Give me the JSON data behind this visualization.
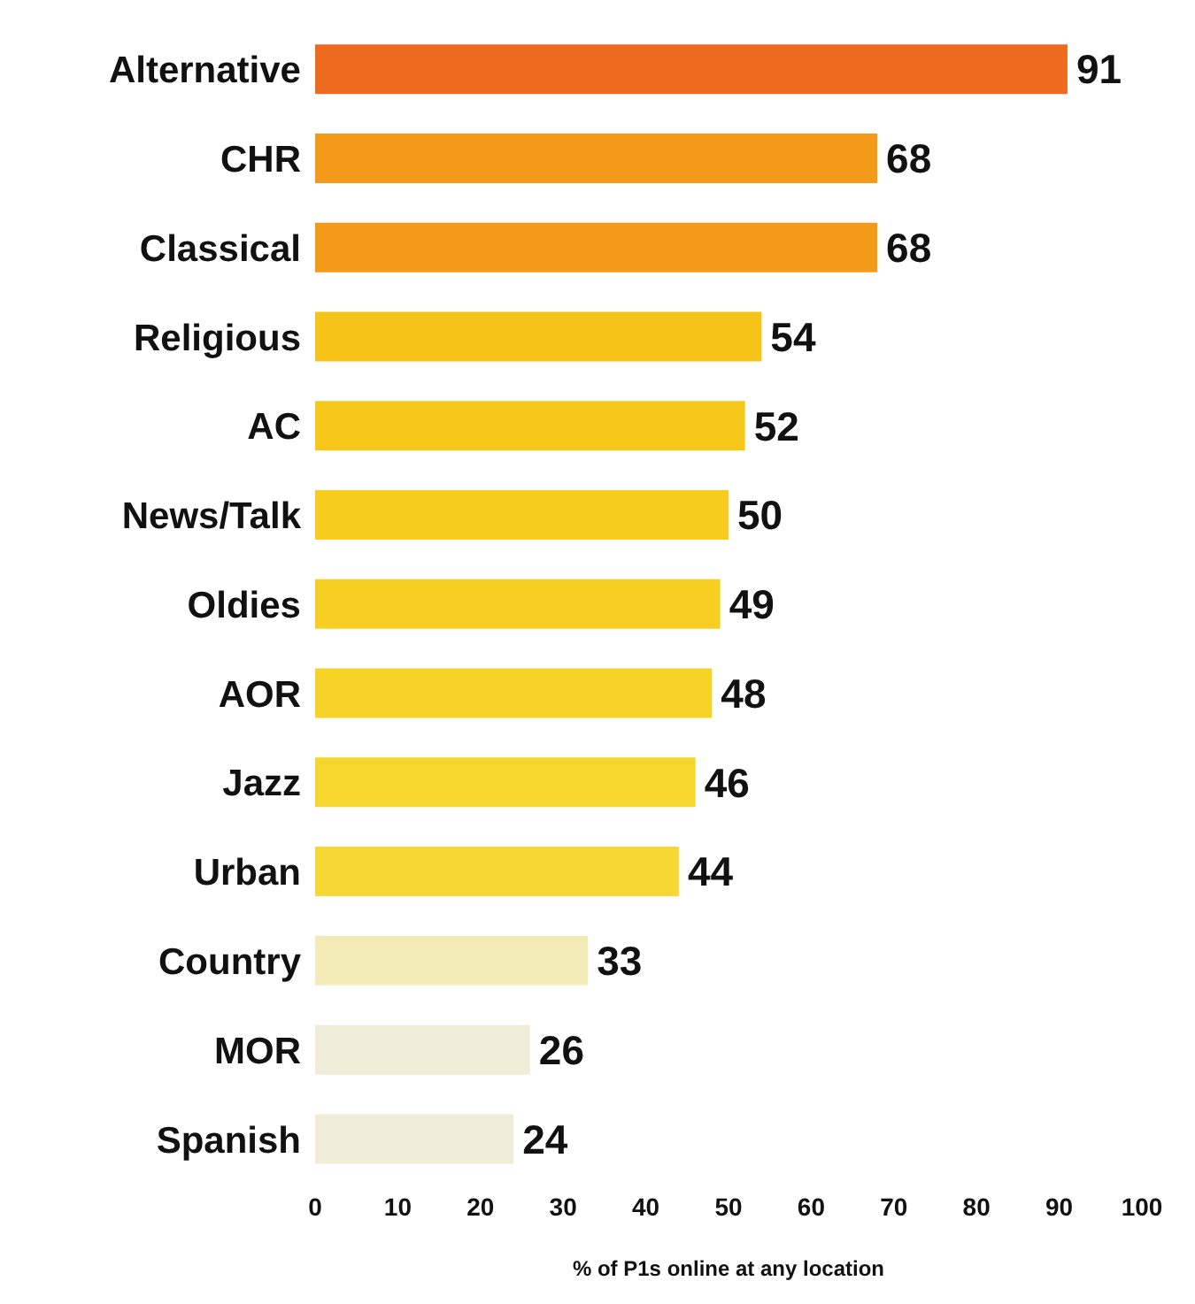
{
  "chart_data": {
    "type": "bar",
    "orientation": "horizontal",
    "xlabel": "% of P1s online at any location",
    "categories": [
      "Alternative",
      "CHR",
      "Classical",
      "Religious",
      "AC",
      "News/Talk",
      "Oldies",
      "AOR",
      "Jazz",
      "Urban",
      "Country",
      "MOR",
      "Spanish"
    ],
    "values": [
      91,
      68,
      68,
      54,
      52,
      50,
      49,
      48,
      46,
      44,
      33,
      26,
      24
    ],
    "colors": [
      "#ee6a1e",
      "#f39a1a",
      "#f39a1a",
      "#f6c318",
      "#f6c81a",
      "#f6cc1e",
      "#f6cf22",
      "#f6d226",
      "#f6d52c",
      "#f6d834",
      "#f3ebb8",
      "#efecd8",
      "#efecd8"
    ],
    "xlim": [
      0,
      100
    ],
    "xticks": [
      0,
      10,
      20,
      30,
      40,
      50,
      60,
      70,
      80,
      90,
      100
    ],
    "data_labels": true
  }
}
